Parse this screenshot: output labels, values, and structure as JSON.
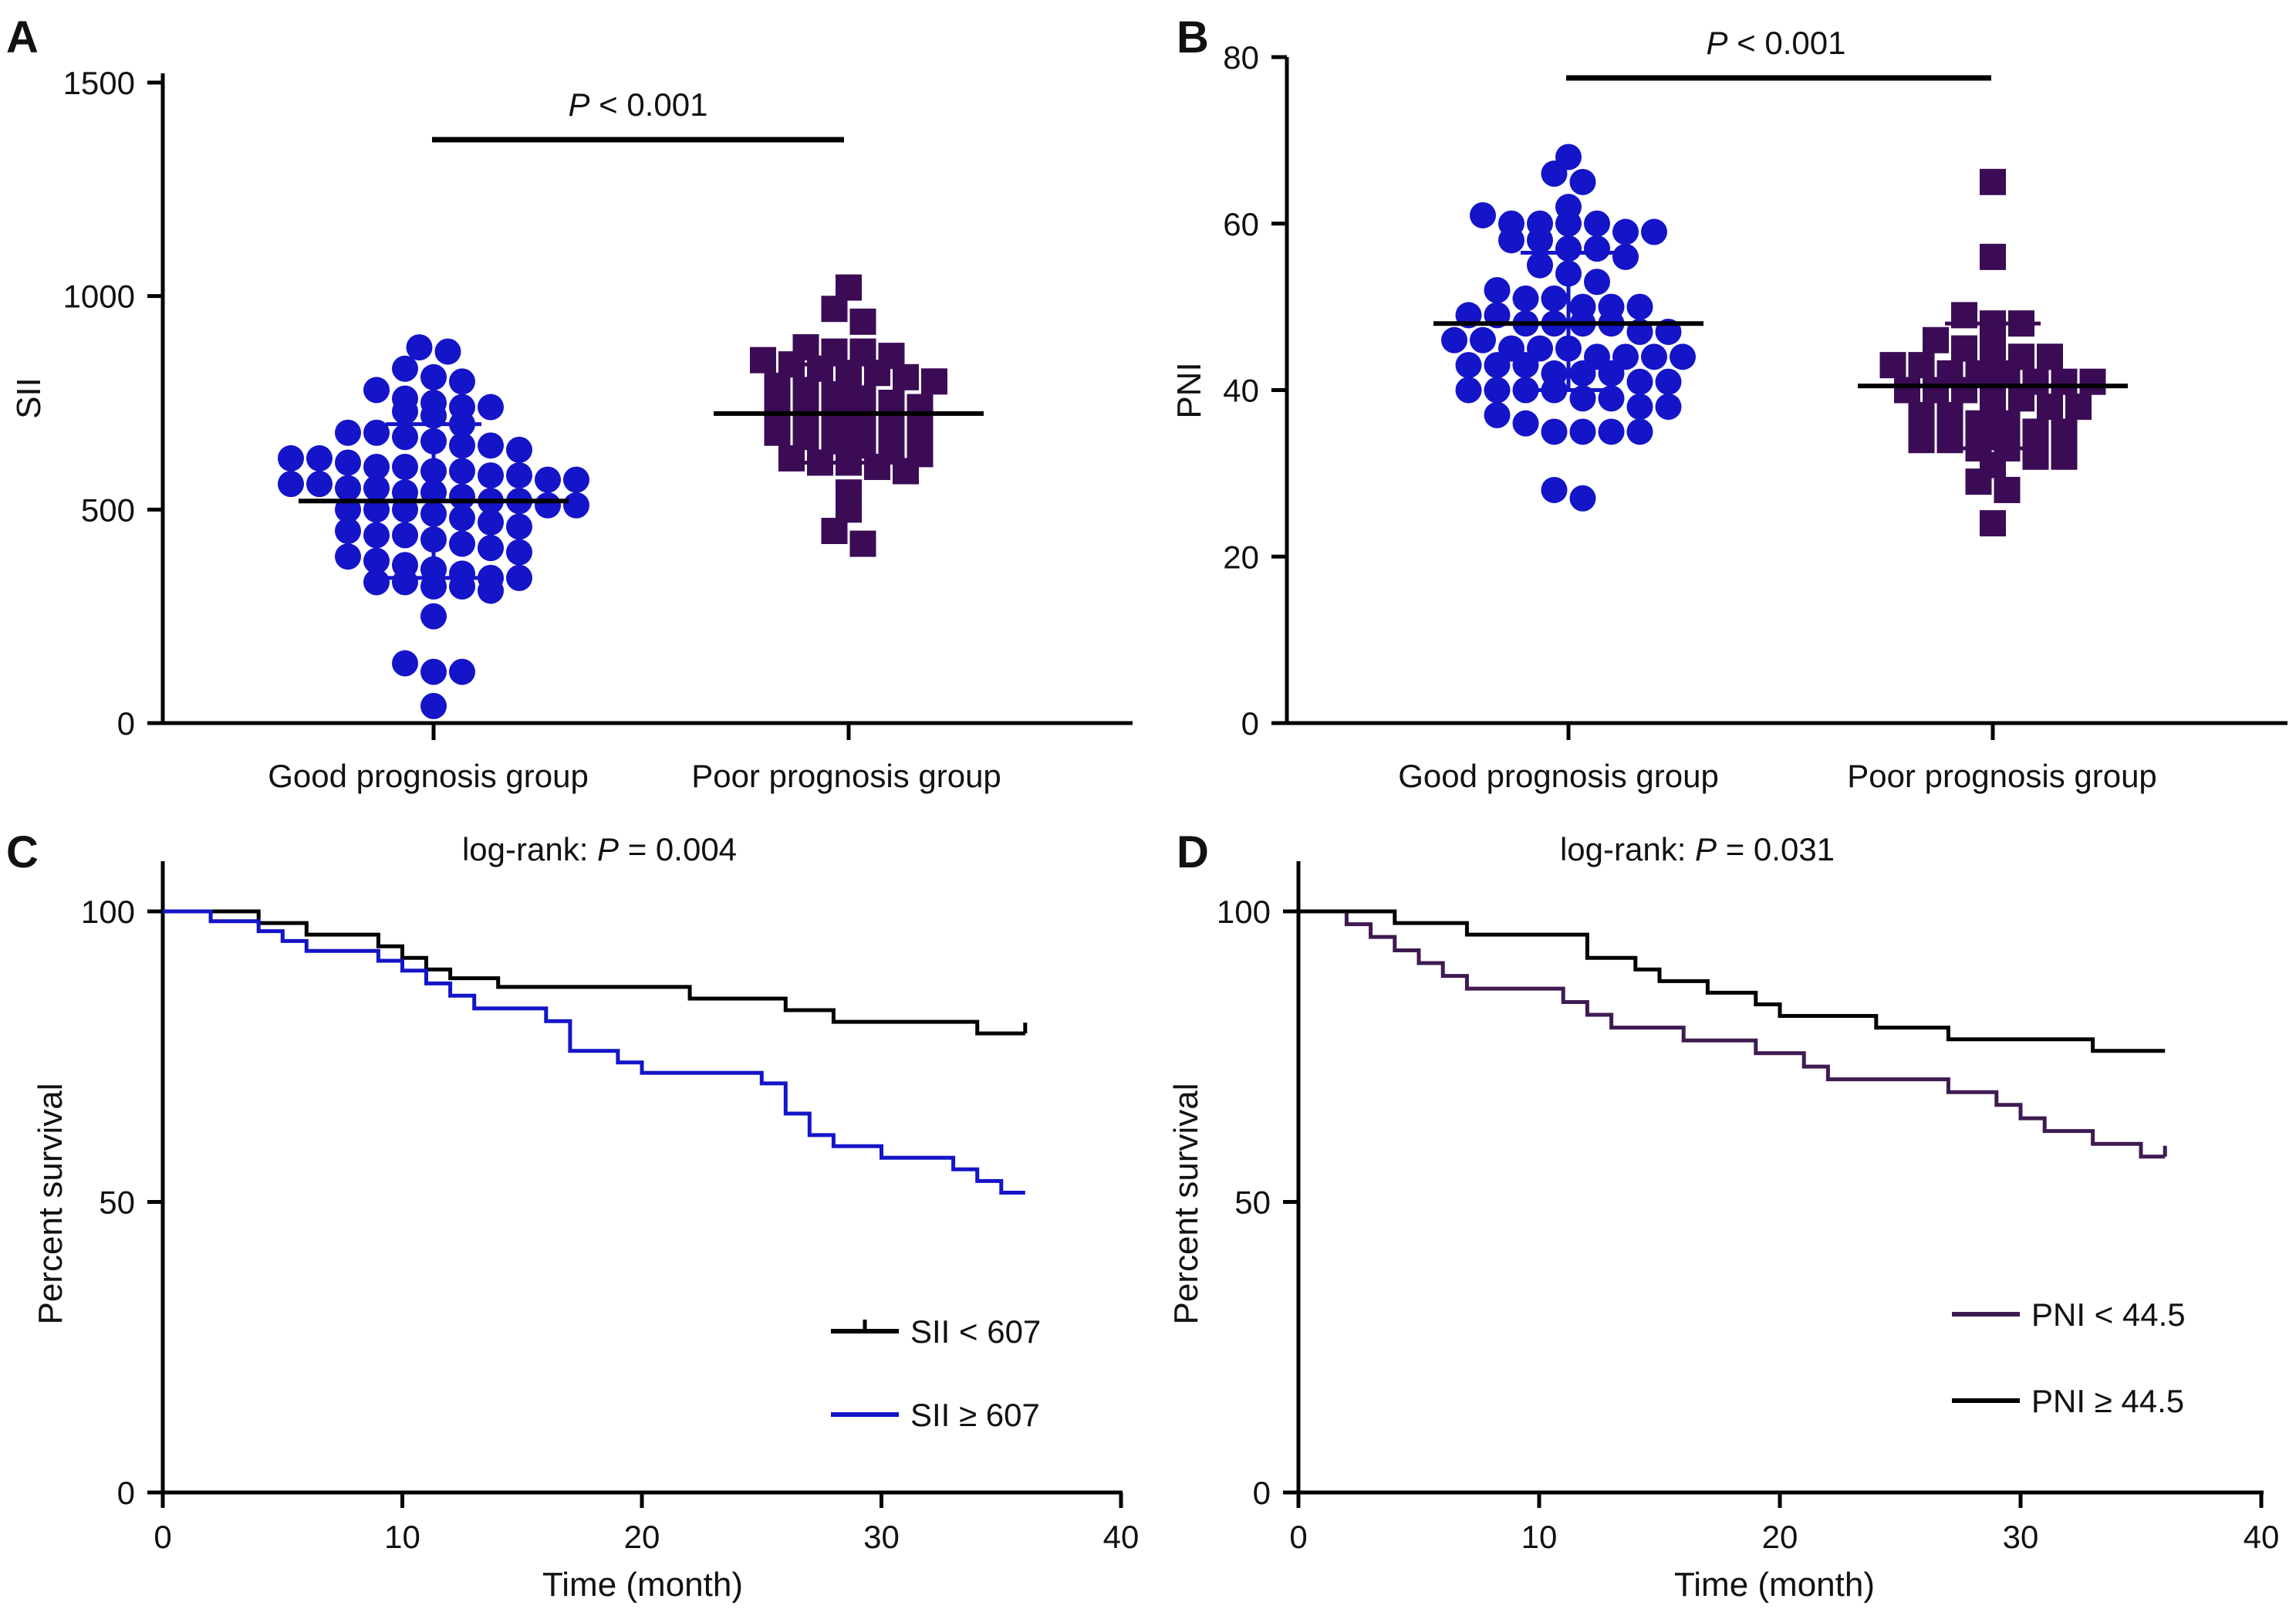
{
  "colors": {
    "blue": "#1414c8",
    "purple": "#3b0c55",
    "black": "#000000",
    "km_purple": "#3f1a52"
  },
  "chart_data": [
    {
      "panel": "A",
      "type": "scatter",
      "ylabel": "SII",
      "ylim": [
        0,
        1500
      ],
      "yticks": [
        "0",
        "500",
        "1000",
        "1500"
      ],
      "categories": [
        "Good prognosis group",
        "Poor prognosis group"
      ],
      "significance": {
        "prefix": "P",
        "text": " < 0.001"
      },
      "groups": [
        {
          "marker": "circle",
          "color": "#1414c8",
          "mean": 520,
          "sd_low": 340,
          "sd_high": 700,
          "values": [
            880,
            870,
            830,
            810,
            800,
            780,
            760,
            740,
            740,
            750,
            730,
            720,
            700,
            680,
            680,
            670,
            660,
            650,
            650,
            640,
            620,
            620,
            610,
            600,
            600,
            590,
            590,
            580,
            580,
            570,
            570,
            560,
            560,
            550,
            550,
            540,
            540,
            530,
            520,
            520,
            510,
            510,
            500,
            500,
            500,
            490,
            480,
            470,
            460,
            450,
            440,
            440,
            430,
            420,
            410,
            400,
            390,
            380,
            370,
            360,
            350,
            340,
            340,
            330,
            330,
            320,
            320,
            310,
            250,
            140,
            120,
            120,
            40
          ]
        },
        {
          "marker": "square",
          "color": "#3b0c55",
          "mean": 725,
          "sd_low": 610,
          "sd_high": 840,
          "values": [
            1020,
            970,
            940,
            880,
            870,
            870,
            860,
            850,
            840,
            830,
            820,
            820,
            810,
            800,
            790,
            780,
            770,
            760,
            750,
            740,
            730,
            720,
            710,
            700,
            700,
            690,
            680,
            670,
            660,
            650,
            640,
            630,
            620,
            610,
            610,
            600,
            590,
            540,
            500,
            450,
            420
          ]
        }
      ]
    },
    {
      "panel": "B",
      "type": "scatter",
      "ylabel": "PNI",
      "ylim": [
        0,
        80
      ],
      "yticks": [
        "0",
        "20",
        "40",
        "60",
        "80"
      ],
      "categories": [
        "Good prognosis group",
        "Poor prognosis group"
      ],
      "significance": {
        "prefix": "P",
        "text": " < 0.001"
      },
      "groups": [
        {
          "marker": "circle",
          "color": "#1414c8",
          "mean": 48,
          "sd_low": 40,
          "sd_high": 56.5,
          "values": [
            68,
            66,
            65,
            62,
            61,
            60,
            60,
            60,
            60,
            59,
            59,
            58,
            58,
            57,
            57,
            56,
            55,
            54,
            53,
            52,
            51,
            51,
            50,
            50,
            50,
            49,
            49,
            48,
            48,
            48,
            48,
            47,
            47,
            46,
            46,
            45,
            45,
            45,
            44,
            44,
            44,
            44,
            43,
            43,
            43,
            42,
            42,
            42,
            41,
            41,
            40,
            40,
            40,
            40,
            39,
            39,
            38,
            38,
            37,
            36,
            35,
            35,
            35,
            35,
            28,
            27
          ]
        },
        {
          "marker": "square",
          "color": "#3b0c55",
          "mean": 40.5,
          "sd_low": 33,
          "sd_high": 48,
          "values": [
            65,
            56,
            49,
            48,
            48,
            46,
            45,
            45,
            44,
            44,
            43,
            43,
            42,
            42,
            42,
            41,
            41,
            41,
            40,
            40,
            40,
            39,
            39,
            38,
            38,
            37,
            37,
            36,
            36,
            35,
            35,
            34,
            34,
            33,
            33,
            32,
            32,
            31,
            29,
            28,
            24
          ]
        }
      ]
    },
    {
      "panel": "C",
      "type": "line",
      "xlabel": "Time (month)",
      "ylabel": "Percent survival",
      "xlim": [
        0,
        40
      ],
      "ylim": [
        0,
        110
      ],
      "xticks": [
        "0",
        "10",
        "20",
        "30",
        "40"
      ],
      "yticks": [
        "0",
        "50",
        "100"
      ],
      "annotation": {
        "prefix": "log-rank: ",
        "italic": "P",
        "suffix": " = 0.004"
      },
      "series": [
        {
          "name": "SII < 607",
          "color": "#000000",
          "censor_tick": true,
          "points": [
            [
              0,
              100
            ],
            [
              4,
              100
            ],
            [
              4,
              98
            ],
            [
              6,
              98
            ],
            [
              6,
              96
            ],
            [
              9,
              96
            ],
            [
              9,
              94
            ],
            [
              10,
              94
            ],
            [
              10,
              92
            ],
            [
              11,
              92
            ],
            [
              11,
              90
            ],
            [
              12,
              90
            ],
            [
              12,
              88.5
            ],
            [
              14,
              88.5
            ],
            [
              14,
              87
            ],
            [
              22,
              87
            ],
            [
              22,
              85
            ],
            [
              26,
              85
            ],
            [
              26,
              83
            ],
            [
              28,
              83
            ],
            [
              28,
              81
            ],
            [
              34,
              81
            ],
            [
              34,
              79
            ],
            [
              36,
              79
            ]
          ]
        },
        {
          "name": "SII ≥ 607",
          "color": "#1414c8",
          "censor_tick": false,
          "points": [
            [
              0,
              100
            ],
            [
              2,
              100
            ],
            [
              2,
              98.3
            ],
            [
              4,
              98.3
            ],
            [
              4,
              96.6
            ],
            [
              5,
              96.6
            ],
            [
              5,
              94.9
            ],
            [
              6,
              94.9
            ],
            [
              6,
              93.2
            ],
            [
              9,
              93.2
            ],
            [
              9,
              91.5
            ],
            [
              10,
              91.5
            ],
            [
              10,
              89.8
            ],
            [
              11,
              89.8
            ],
            [
              11,
              87.6
            ],
            [
              12,
              87.6
            ],
            [
              12,
              85.5
            ],
            [
              13,
              85.5
            ],
            [
              13,
              83.3
            ],
            [
              16,
              83.3
            ],
            [
              16,
              81.1
            ],
            [
              17,
              81.1
            ],
            [
              17,
              76
            ],
            [
              19,
              76
            ],
            [
              19,
              74
            ],
            [
              20,
              74
            ],
            [
              20,
              72.2
            ],
            [
              25,
              72.2
            ],
            [
              25,
              70.4
            ],
            [
              26,
              70.4
            ],
            [
              26,
              65.2
            ],
            [
              27,
              65.2
            ],
            [
              27,
              61.5
            ],
            [
              28,
              61.5
            ],
            [
              28,
              59.6
            ],
            [
              30,
              59.6
            ],
            [
              30,
              57.6
            ],
            [
              33,
              57.6
            ],
            [
              33,
              55.6
            ],
            [
              34,
              55.6
            ],
            [
              34,
              53.6
            ],
            [
              35,
              53.6
            ],
            [
              35,
              51.6
            ],
            [
              36,
              51.6
            ]
          ]
        }
      ]
    },
    {
      "panel": "D",
      "type": "line",
      "xlabel": "Time (month)",
      "ylabel": "Percent survival",
      "xlim": [
        0,
        40
      ],
      "ylim": [
        0,
        110
      ],
      "xticks": [
        "0",
        "10",
        "20",
        "30",
        "40"
      ],
      "yticks": [
        "0",
        "50",
        "100"
      ],
      "annotation": {
        "prefix": "log-rank: ",
        "italic": "P",
        "suffix": " = 0.031"
      },
      "series": [
        {
          "name": "PNI < 44.5",
          "color": "#3f1a52",
          "censor_tick": true,
          "points": [
            [
              0,
              100
            ],
            [
              2,
              100
            ],
            [
              2,
              97.8
            ],
            [
              3,
              97.8
            ],
            [
              3,
              95.6
            ],
            [
              4,
              95.6
            ],
            [
              4,
              93.3
            ],
            [
              5,
              93.3
            ],
            [
              5,
              91.1
            ],
            [
              6,
              91.1
            ],
            [
              6,
              88.9
            ],
            [
              7,
              88.9
            ],
            [
              7,
              86.7
            ],
            [
              11,
              86.7
            ],
            [
              11,
              84.4
            ],
            [
              12,
              84.4
            ],
            [
              12,
              82.2
            ],
            [
              13,
              82.2
            ],
            [
              13,
              80
            ],
            [
              16,
              80
            ],
            [
              16,
              77.8
            ],
            [
              19,
              77.8
            ],
            [
              19,
              75.6
            ],
            [
              21,
              75.6
            ],
            [
              21,
              73.3
            ],
            [
              22,
              73.3
            ],
            [
              22,
              71.1
            ],
            [
              27,
              71.1
            ],
            [
              27,
              68.9
            ],
            [
              29,
              68.9
            ],
            [
              29,
              66.7
            ],
            [
              30,
              66.7
            ],
            [
              30,
              64.4
            ],
            [
              31,
              64.4
            ],
            [
              31,
              62.2
            ],
            [
              33,
              62.2
            ],
            [
              33,
              60
            ],
            [
              35,
              60
            ],
            [
              35,
              57.8
            ],
            [
              36,
              57.8
            ]
          ]
        },
        {
          "name": "PNI ≥ 44.5",
          "color": "#000000",
          "censor_tick": false,
          "points": [
            [
              0,
              100
            ],
            [
              4,
              100
            ],
            [
              4,
              98
            ],
            [
              7,
              98
            ],
            [
              7,
              96
            ],
            [
              12,
              96
            ],
            [
              12,
              92
            ],
            [
              14,
              92
            ],
            [
              14,
              90
            ],
            [
              15,
              90
            ],
            [
              15,
              88
            ],
            [
              17,
              88
            ],
            [
              17,
              86
            ],
            [
              19,
              86
            ],
            [
              19,
              84
            ],
            [
              20,
              84
            ],
            [
              20,
              82
            ],
            [
              24,
              82
            ],
            [
              24,
              80
            ],
            [
              27,
              80
            ],
            [
              27,
              78
            ],
            [
              33,
              78
            ],
            [
              33,
              76
            ],
            [
              36,
              76
            ]
          ]
        }
      ]
    }
  ]
}
